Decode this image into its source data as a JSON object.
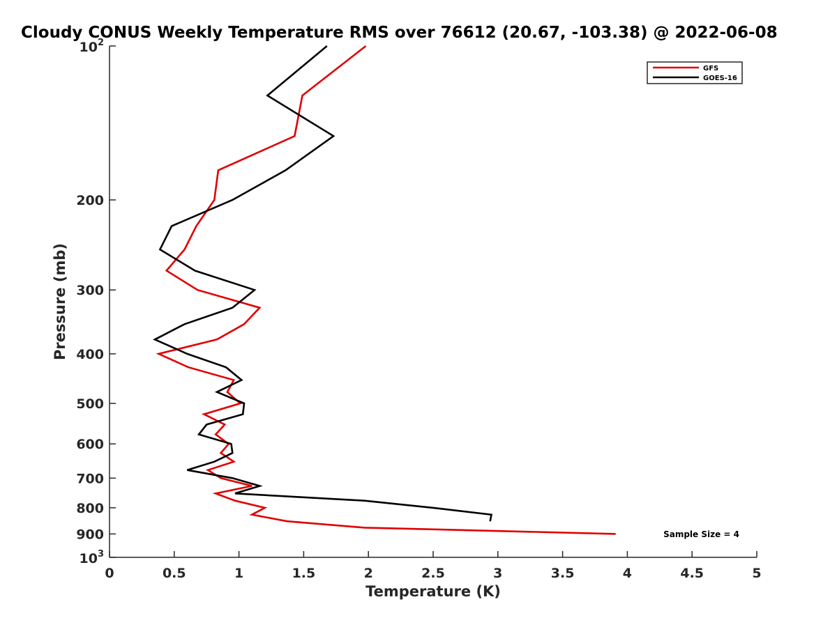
{
  "chart_data": {
    "type": "line",
    "title": "Cloudy CONUS Weekly Temperature RMS over 76612 (20.67, -103.38) @ 2022-06-08",
    "xlabel": "Temperature (K)",
    "ylabel": "Pressure (mb)",
    "xlim": [
      0,
      5
    ],
    "ylim": [
      100,
      1000
    ],
    "yscale": "log",
    "y_reversed": true,
    "x_ticks": [
      0,
      0.5,
      1,
      1.5,
      2,
      2.5,
      3,
      3.5,
      4,
      4.5,
      5
    ],
    "x_tick_labels": [
      "0",
      "0.5",
      "1",
      "1.5",
      "2",
      "2.5",
      "3",
      "3.5",
      "4",
      "4.5",
      "5"
    ],
    "y_ticks": [
      200,
      300,
      400,
      500,
      600,
      700,
      800,
      900
    ],
    "y_tick_labels": [
      "200",
      "300",
      "400",
      "500",
      "600",
      "700",
      "800",
      "900"
    ],
    "y_decade_ticks": [
      {
        "value": 100,
        "base": "10",
        "exp": "2"
      },
      {
        "value": 1000,
        "base": "10",
        "exp": "3"
      }
    ],
    "legend_position": "top-right",
    "annotation": "Sample Size = 4",
    "series": [
      {
        "name": "GFS",
        "color": "#e00000",
        "points": [
          {
            "x": 1.98,
            "y": 100
          },
          {
            "x": 1.49,
            "y": 125
          },
          {
            "x": 1.43,
            "y": 150
          },
          {
            "x": 0.84,
            "y": 175
          },
          {
            "x": 0.81,
            "y": 200
          },
          {
            "x": 0.67,
            "y": 225
          },
          {
            "x": 0.58,
            "y": 250
          },
          {
            "x": 0.44,
            "y": 275
          },
          {
            "x": 0.68,
            "y": 300
          },
          {
            "x": 1.16,
            "y": 325
          },
          {
            "x": 1.04,
            "y": 350
          },
          {
            "x": 0.83,
            "y": 375
          },
          {
            "x": 0.38,
            "y": 400
          },
          {
            "x": 0.61,
            "y": 425
          },
          {
            "x": 0.96,
            "y": 450
          },
          {
            "x": 0.91,
            "y": 475
          },
          {
            "x": 1.01,
            "y": 500
          },
          {
            "x": 0.73,
            "y": 525
          },
          {
            "x": 0.89,
            "y": 550
          },
          {
            "x": 0.82,
            "y": 575
          },
          {
            "x": 0.92,
            "y": 600
          },
          {
            "x": 0.86,
            "y": 625
          },
          {
            "x": 0.96,
            "y": 650
          },
          {
            "x": 0.76,
            "y": 675
          },
          {
            "x": 0.86,
            "y": 700
          },
          {
            "x": 1.1,
            "y": 725
          },
          {
            "x": 0.82,
            "y": 750
          },
          {
            "x": 0.97,
            "y": 775
          },
          {
            "x": 1.2,
            "y": 800
          },
          {
            "x": 1.1,
            "y": 825
          },
          {
            "x": 1.37,
            "y": 850
          },
          {
            "x": 1.97,
            "y": 875
          },
          {
            "x": 3.91,
            "y": 900
          }
        ]
      },
      {
        "name": "GOES-16",
        "color": "#000000",
        "points": [
          {
            "x": 1.68,
            "y": 100
          },
          {
            "x": 1.22,
            "y": 125
          },
          {
            "x": 1.73,
            "y": 150
          },
          {
            "x": 1.36,
            "y": 175
          },
          {
            "x": 0.95,
            "y": 200
          },
          {
            "x": 0.48,
            "y": 225
          },
          {
            "x": 0.39,
            "y": 250
          },
          {
            "x": 0.66,
            "y": 275
          },
          {
            "x": 1.12,
            "y": 300
          },
          {
            "x": 0.95,
            "y": 325
          },
          {
            "x": 0.58,
            "y": 350
          },
          {
            "x": 0.35,
            "y": 375
          },
          {
            "x": 0.6,
            "y": 400
          },
          {
            "x": 0.9,
            "y": 425
          },
          {
            "x": 1.02,
            "y": 450
          },
          {
            "x": 0.83,
            "y": 475
          },
          {
            "x": 1.04,
            "y": 500
          },
          {
            "x": 1.03,
            "y": 525
          },
          {
            "x": 0.75,
            "y": 550
          },
          {
            "x": 0.69,
            "y": 575
          },
          {
            "x": 0.94,
            "y": 600
          },
          {
            "x": 0.95,
            "y": 625
          },
          {
            "x": 0.81,
            "y": 650
          },
          {
            "x": 0.6,
            "y": 675
          },
          {
            "x": 0.95,
            "y": 700
          },
          {
            "x": 1.16,
            "y": 725
          },
          {
            "x": 0.97,
            "y": 750
          },
          {
            "x": 1.97,
            "y": 775
          },
          {
            "x": 2.5,
            "y": 800
          },
          {
            "x": 2.95,
            "y": 825
          },
          {
            "x": 2.94,
            "y": 850
          }
        ]
      }
    ]
  }
}
